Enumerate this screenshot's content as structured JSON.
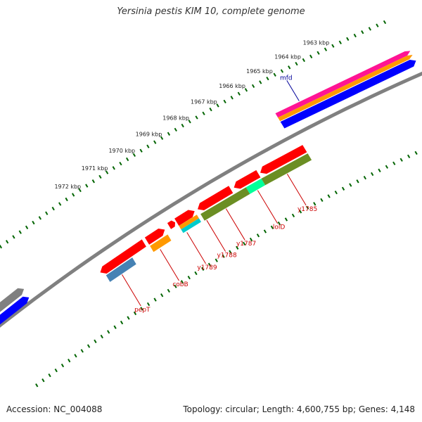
{
  "title": "Yersinia pestis KIM 10, complete genome",
  "footer": {
    "accession": "Accession: NC_004088",
    "summary": "Topology: circular; Length: 4,600,755 bp; Genes: 4,148"
  },
  "ticks": [
    "1963 kbp",
    "1964 kbp",
    "1965 kbp",
    "1966 kbp",
    "1967 kbp",
    "1968 kbp",
    "1969 kbp",
    "1970 kbp",
    "1971 kbp",
    "1972 kbp"
  ],
  "genes": [
    "mfd",
    "y1785",
    "lolD",
    "y1787",
    "y1788",
    "y1789",
    "cobB",
    "pepT"
  ],
  "colors": {
    "red": "#ff0000",
    "blue": "#0000ff",
    "steelblue": "#4682b4",
    "orange": "#ff9900",
    "cyan": "#00cccc",
    "olive": "#6b8e23",
    "springgreen": "#00ff99",
    "pink": "#ff1493",
    "gray": "#808080",
    "tick": "#006400",
    "label_red": "#cc0000",
    "label_blue": "#000099"
  }
}
